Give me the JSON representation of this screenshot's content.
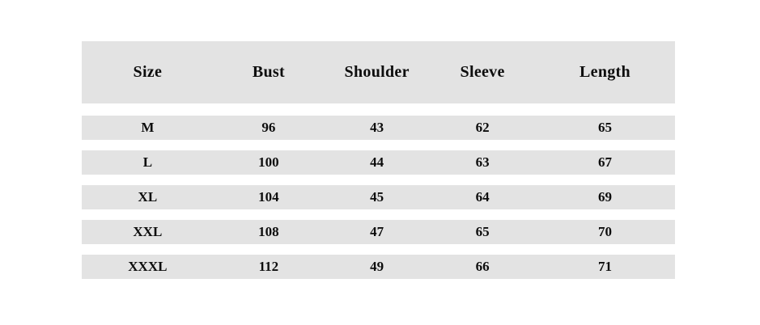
{
  "chart_data": {
    "type": "table",
    "title": "",
    "columns": [
      "Size",
      "Bust",
      "Shoulder",
      "Sleeve",
      "Length"
    ],
    "rows": [
      [
        "M",
        "96",
        "43",
        "62",
        "65"
      ],
      [
        "L",
        "100",
        "44",
        "63",
        "67"
      ],
      [
        "XL",
        "104",
        "45",
        "64",
        "69"
      ],
      [
        "XXL",
        "108",
        "47",
        "65",
        "70"
      ],
      [
        "XXXL",
        "112",
        "49",
        "66",
        "71"
      ]
    ]
  },
  "colors": {
    "band_bg": "#e3e3e3",
    "page_bg": "#ffffff",
    "text": "#0d0d0d"
  }
}
